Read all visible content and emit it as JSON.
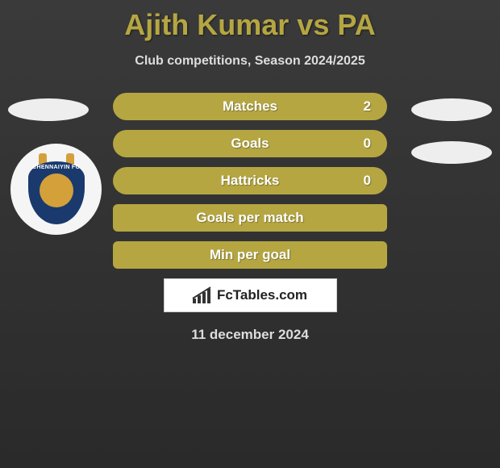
{
  "title": "Ajith Kumar vs PA",
  "subtitle": "Club competitions, Season 2024/2025",
  "club_logo": {
    "name": "CHENNAIYIN FC",
    "shield_color": "#1a3a6e",
    "accent_color": "#d4a03a"
  },
  "stats": [
    {
      "label": "Matches",
      "value": "2",
      "has_value": true
    },
    {
      "label": "Goals",
      "value": "0",
      "has_value": true
    },
    {
      "label": "Hattricks",
      "value": "0",
      "has_value": true
    },
    {
      "label": "Goals per match",
      "value": "",
      "has_value": false
    },
    {
      "label": "Min per goal",
      "value": "",
      "has_value": false
    }
  ],
  "brand": "FcTables.com",
  "date": "11 december 2024",
  "colors": {
    "stat_bar": "#b5a642",
    "title": "#b5a642",
    "text_light": "#ddd",
    "bg_top": "#3a3a3a",
    "bg_bottom": "#2a2a2a"
  }
}
